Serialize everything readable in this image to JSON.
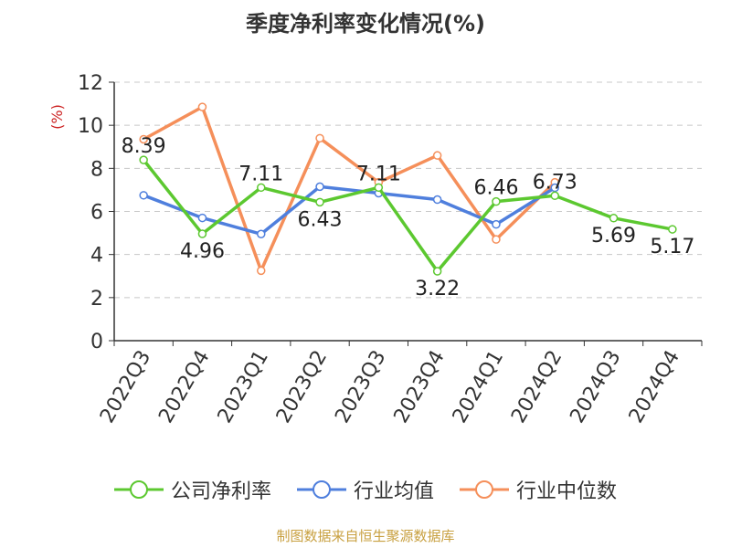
{
  "chart_data": {
    "type": "line",
    "title": "季度净利率变化情况(%)",
    "ylabel": "(%)",
    "xlabel": "",
    "categories": [
      "2022Q3",
      "2022Q4",
      "2023Q1",
      "2023Q2",
      "2023Q3",
      "2023Q4",
      "2024Q1",
      "2024Q2",
      "2024Q3",
      "2024Q4"
    ],
    "ylim": [
      0,
      12
    ],
    "yticks": [
      0,
      2,
      4,
      6,
      8,
      10,
      12
    ],
    "grid": true,
    "legend_position": "bottom",
    "series": [
      {
        "name": "公司净利率",
        "color": "#5cc830",
        "values": [
          8.39,
          4.96,
          7.11,
          6.43,
          7.11,
          3.22,
          6.46,
          6.73,
          5.69,
          5.17
        ],
        "labels": [
          "8.39",
          "4.96",
          "7.11",
          "6.43",
          "7.11",
          "3.22",
          "6.46",
          "6.73",
          "5.69",
          "5.17"
        ]
      },
      {
        "name": "行业均值",
        "color": "#4f7fdd",
        "values": [
          6.75,
          5.7,
          4.95,
          7.15,
          6.85,
          6.55,
          5.4,
          7.1,
          null,
          null
        ]
      },
      {
        "name": "行业中位数",
        "color": "#f58f5a",
        "values": [
          9.35,
          10.85,
          3.25,
          9.4,
          7.35,
          8.6,
          4.7,
          7.35,
          null,
          null
        ]
      }
    ]
  },
  "source_note": "制图数据来自恒生聚源数据库"
}
